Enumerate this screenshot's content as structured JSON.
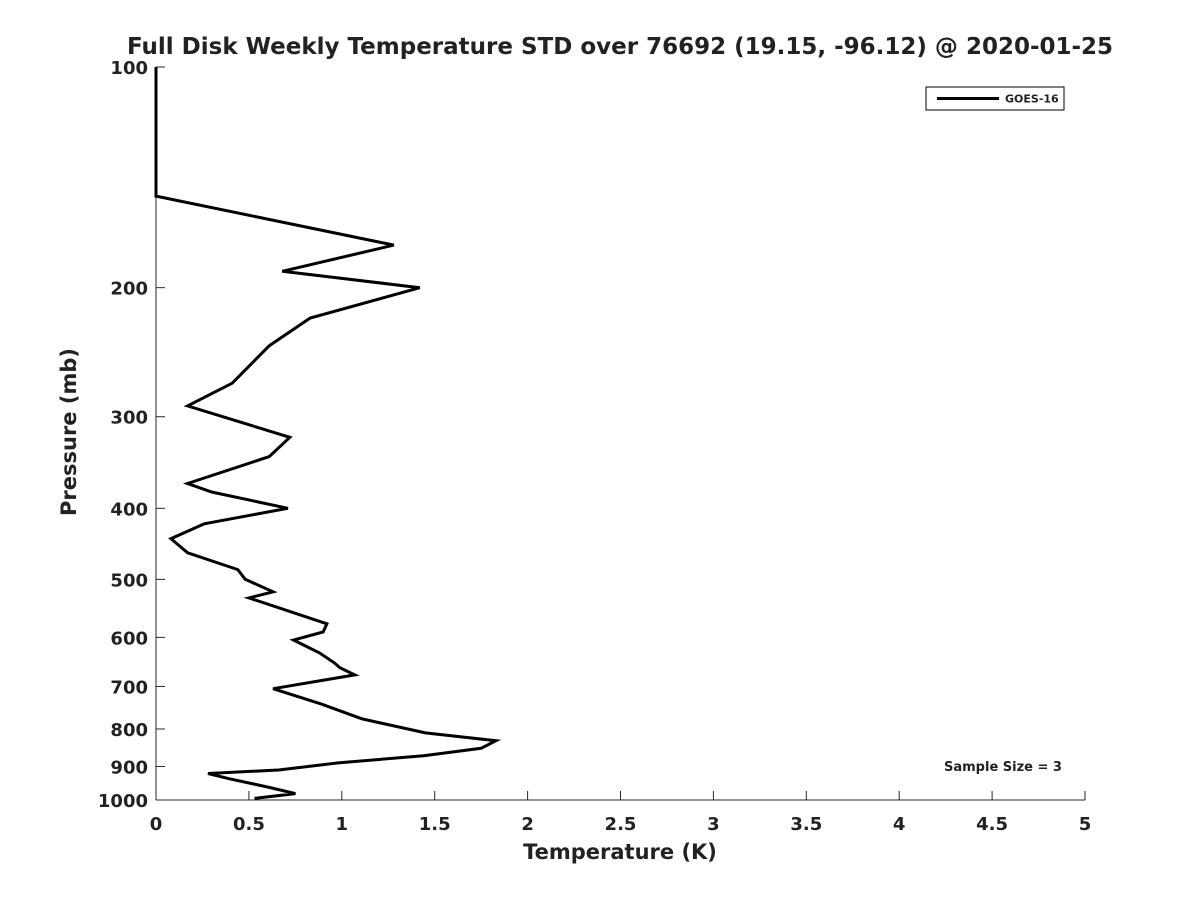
{
  "chart_data": {
    "type": "line",
    "title": "Full Disk Weekly Temperature STD over 76692 (19.15, -96.12) @ 2020-01-25",
    "xlabel": "Temperature (K)",
    "ylabel": "Pressure (mb)",
    "xlim": [
      0,
      5
    ],
    "ylim": [
      100,
      1000
    ],
    "y_scale": "log",
    "y_reversed": true,
    "x_ticks": [
      "0",
      "0.5",
      "1",
      "1.5",
      "2",
      "2.5",
      "3",
      "3.5",
      "4",
      "4.5",
      "5"
    ],
    "y_ticks": [
      "100",
      "200",
      "300",
      "400",
      "500",
      "600",
      "700",
      "800",
      "900",
      "1000"
    ],
    "grid": false,
    "legend_position": "top-right",
    "line_color": "#000000",
    "series": [
      {
        "name": "GOES-16",
        "x": [
          0,
          0,
          1.28,
          0.68,
          1.42,
          0.83,
          0.61,
          0.41,
          0.17,
          0.72,
          0.61,
          0.17,
          0.3,
          0.71,
          0.26,
          0.08,
          0.17,
          0.44,
          0.48,
          0.63,
          0.5,
          0.92,
          0.9,
          0.74,
          0.88,
          0.96,
          0.99,
          1.07,
          0.63,
          0.89,
          1.11,
          1.45,
          1.83,
          1.75,
          1.44,
          0.98,
          0.66,
          0.28,
          0.39,
          0.6,
          0.75,
          0.53
        ],
        "y": [
          100,
          150,
          175,
          190,
          200,
          220,
          240,
          270,
          290,
          320,
          340,
          370,
          380,
          400,
          420,
          440,
          460,
          485,
          500,
          520,
          530,
          575,
          590,
          605,
          630,
          650,
          660,
          675,
          705,
          740,
          775,
          810,
          830,
          850,
          870,
          890,
          910,
          920,
          935,
          960,
          980,
          995
        ]
      }
    ],
    "annotations": [
      "Sample Size = 3"
    ]
  }
}
